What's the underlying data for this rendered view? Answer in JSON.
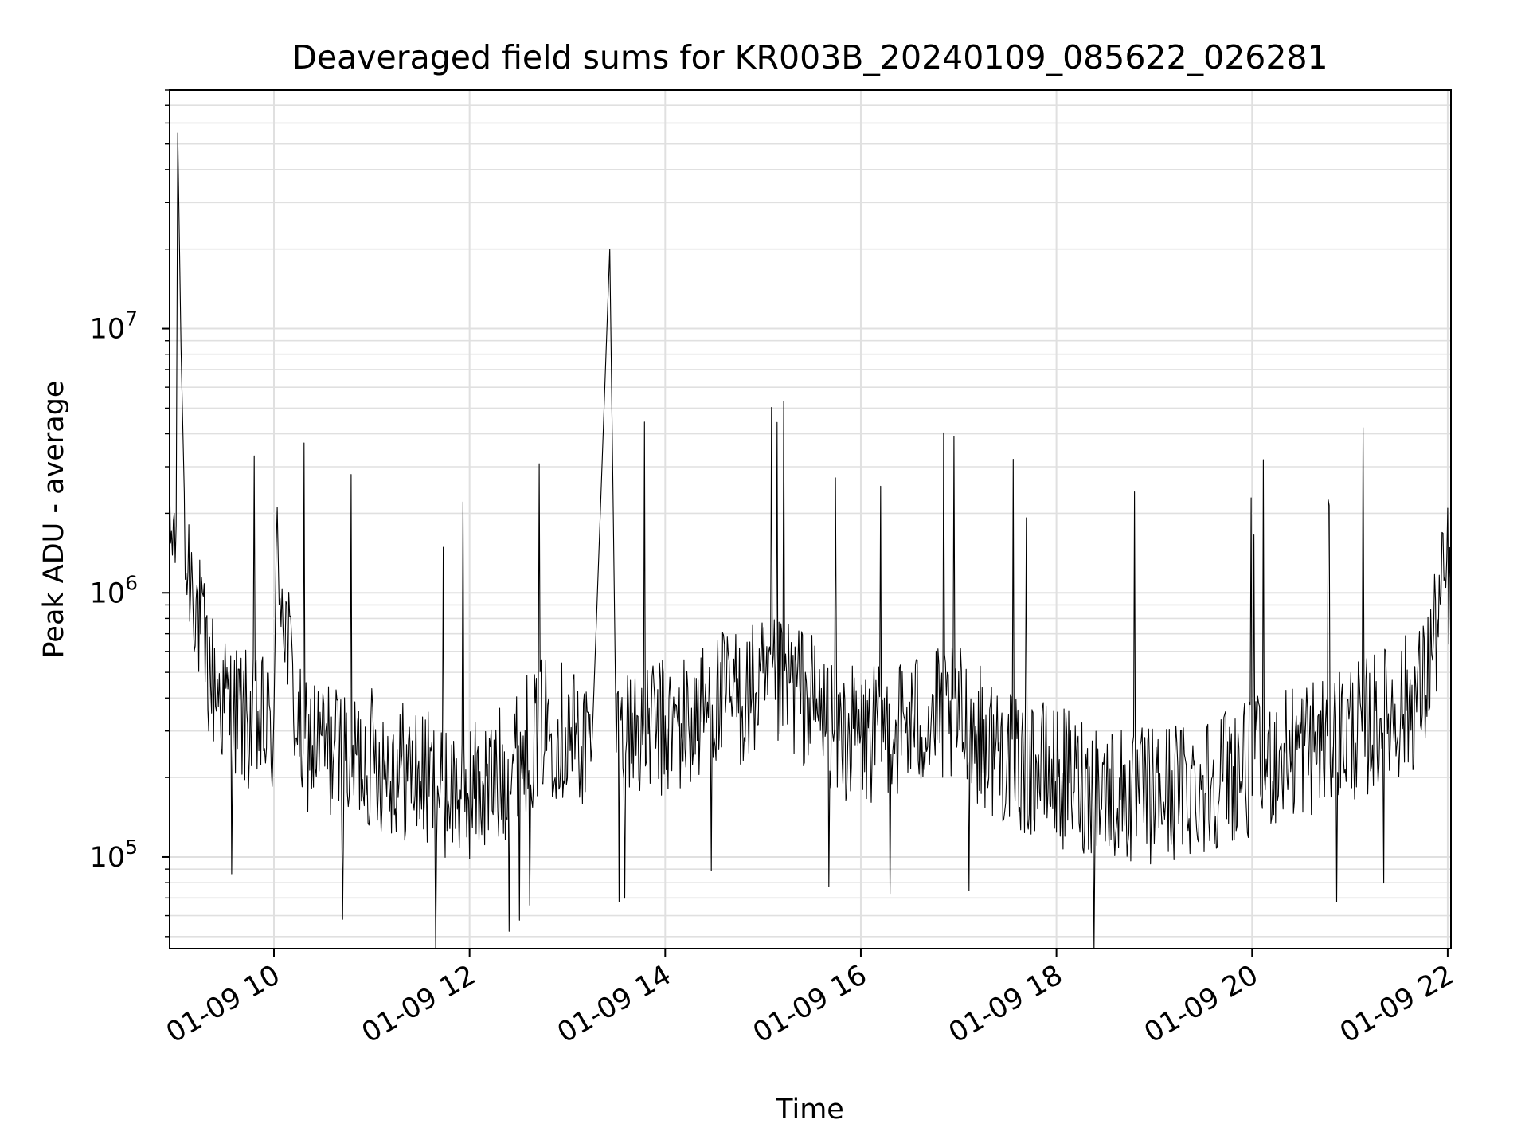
{
  "chart_data": {
    "type": "line",
    "title": "Deaveraged field sums for KR003B_20240109_085622_026281",
    "xlabel": "Time",
    "ylabel": "Peak ADU - average",
    "x_scale": "time",
    "y_scale": "log",
    "xlim": [
      "2024-01-09 08:56",
      "2024-01-09 22:02"
    ],
    "ylim": [
      45000,
      80000000
    ],
    "grid": true,
    "x_tick_labels": [
      "01-09 10",
      "01-09 12",
      "01-09 14",
      "01-09 16",
      "01-09 18",
      "01-09 20",
      "01-09 22"
    ],
    "y_tick_labels": [
      {
        "base": "10",
        "exp": "5"
      },
      {
        "base": "10",
        "exp": "6"
      },
      {
        "base": "10",
        "exp": "7"
      }
    ],
    "line_color": "#000000",
    "series": [
      {
        "x": [
          "2024-01-09 08:56",
          "2024-01-09 09:00",
          "2024-01-09 09:01",
          "2024-01-09 09:05",
          "2024-01-09 09:10",
          "2024-01-09 09:15",
          "2024-01-09 09:20",
          "2024-01-09 09:30",
          "2024-01-09 09:45",
          "2024-01-09 10:00",
          "2024-01-09 10:02",
          "2024-01-09 10:15",
          "2024-01-09 10:30",
          "2024-01-09 10:45",
          "2024-01-09 11:00",
          "2024-01-09 11:15",
          "2024-01-09 11:30",
          "2024-01-09 11:45",
          "2024-01-09 12:00",
          "2024-01-09 12:15",
          "2024-01-09 12:30",
          "2024-01-09 12:45",
          "2024-01-09 13:00",
          "2024-01-09 13:15",
          "2024-01-09 13:26",
          "2024-01-09 13:30",
          "2024-01-09 13:45",
          "2024-01-09 14:00",
          "2024-01-09 14:15",
          "2024-01-09 14:30",
          "2024-01-09 14:45",
          "2024-01-09 15:00",
          "2024-01-09 15:15",
          "2024-01-09 15:30",
          "2024-01-09 15:45",
          "2024-01-09 16:00",
          "2024-01-09 16:15",
          "2024-01-09 16:30",
          "2024-01-09 16:45",
          "2024-01-09 17:00",
          "2024-01-09 17:15",
          "2024-01-09 17:30",
          "2024-01-09 17:45",
          "2024-01-09 18:00",
          "2024-01-09 18:15",
          "2024-01-09 18:30",
          "2024-01-09 18:45",
          "2024-01-09 19:00",
          "2024-01-09 19:15",
          "2024-01-09 19:30",
          "2024-01-09 19:45",
          "2024-01-09 20:00",
          "2024-01-09 20:15",
          "2024-01-09 20:30",
          "2024-01-09 20:45",
          "2024-01-09 21:00",
          "2024-01-09 21:15",
          "2024-01-09 21:30",
          "2024-01-09 21:45",
          "2024-01-09 22:00",
          "2024-01-09 22:02"
        ],
        "y": [
          1500000,
          1800000,
          55000000,
          1300000,
          1200000,
          700000,
          500000,
          380000,
          320000,
          300000,
          1500000,
          280000,
          260000,
          240000,
          240000,
          220000,
          200000,
          180000,
          180000,
          190000,
          240000,
          320000,
          300000,
          260000,
          20000000,
          280000,
          320000,
          300000,
          320000,
          380000,
          400000,
          420000,
          460000,
          380000,
          300000,
          280000,
          300000,
          320000,
          340000,
          340000,
          280000,
          240000,
          220000,
          200000,
          190000,
          180000,
          170000,
          170000,
          180000,
          190000,
          210000,
          220000,
          240000,
          260000,
          270000,
          300000,
          320000,
          360000,
          420000,
          1200000,
          1000000
        ]
      }
    ]
  }
}
